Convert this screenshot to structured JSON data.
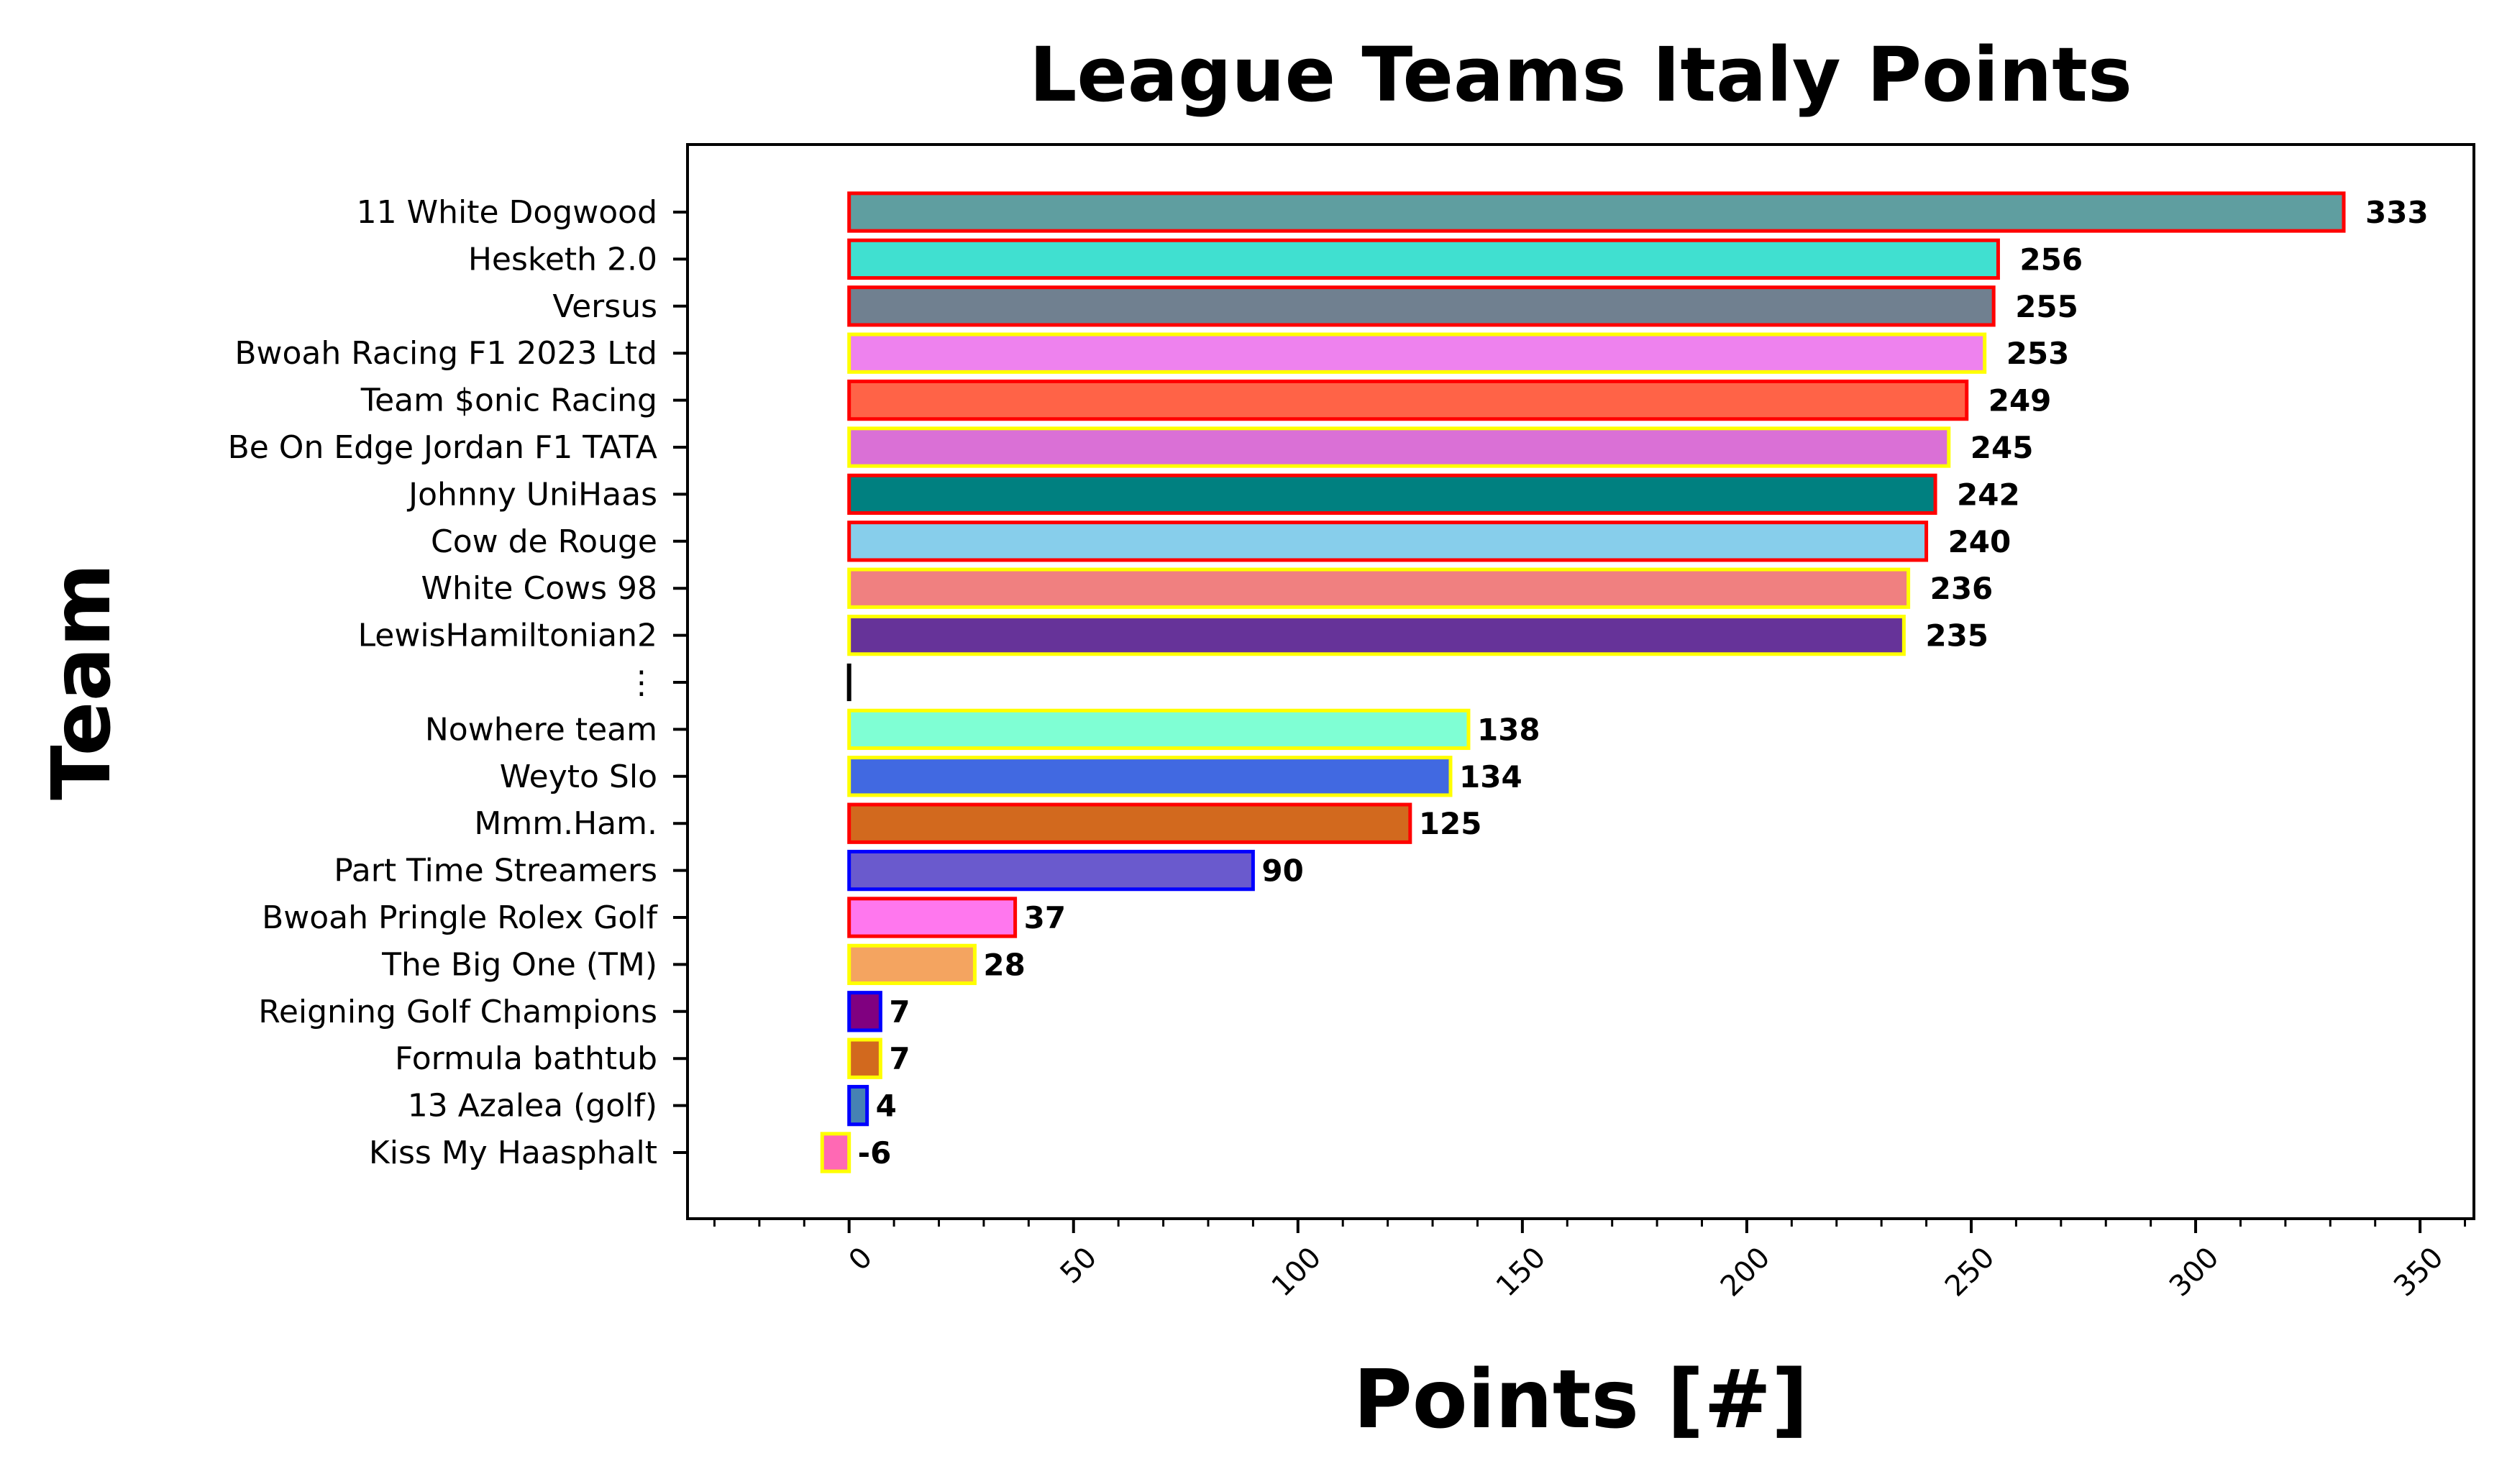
{
  "chart_data": {
    "type": "bar",
    "orientation": "horizontal",
    "title": "League Teams Italy Points",
    "xlabel": "Points [#]",
    "ylabel": "Team",
    "xlim": [
      -36,
      362
    ],
    "xticks": [
      0,
      50,
      100,
      150,
      200,
      250,
      300,
      350
    ],
    "xticks_minor_step": 10,
    "xtick_rotation": 45,
    "grid": false,
    "legend": "none",
    "bars": [
      {
        "label": "11 White Dogwood",
        "value": 333,
        "value_label": "333",
        "fill": "#5f9ea0",
        "edge": "#ff0000"
      },
      {
        "label": "Hesketh 2.0",
        "value": 256,
        "value_label": "256",
        "fill": "#40e0d0",
        "edge": "#ff0000"
      },
      {
        "label": "Versus",
        "value": 255,
        "value_label": "255",
        "fill": "#708090",
        "edge": "#ff0000"
      },
      {
        "label": "Bwoah Racing F1 2023 Ltd",
        "value": 253,
        "value_label": "253",
        "fill": "#ee82ee",
        "edge": "#ffff00"
      },
      {
        "label": "Team $onic Racing",
        "value": 249,
        "value_label": "249",
        "fill": "#ff6347",
        "edge": "#ff0000"
      },
      {
        "label": "Be On Edge Jordan F1 TATA",
        "value": 245,
        "value_label": "245",
        "fill": "#da70d6",
        "edge": "#ffff00"
      },
      {
        "label": "Johnny UniHaas",
        "value": 242,
        "value_label": "242",
        "fill": "#008080",
        "edge": "#ff0000"
      },
      {
        "label": "Cow de Rouge",
        "value": 240,
        "value_label": "240",
        "fill": "#87ceeb",
        "edge": "#ff0000"
      },
      {
        "label": "White Cows 98",
        "value": 236,
        "value_label": "236",
        "fill": "#f08080",
        "edge": "#ffff00"
      },
      {
        "label": "LewisHamiltonian2",
        "value": 235,
        "value_label": "235",
        "fill": "#663399",
        "edge": "#ffff00"
      },
      {
        "label": "⋮",
        "value": 0,
        "value_label": "",
        "fill": "#000000",
        "edge": "#000000",
        "separator": true
      },
      {
        "label": "Nowhere team",
        "value": 138,
        "value_label": "138",
        "fill": "#7fffd4",
        "edge": "#ffff00"
      },
      {
        "label": "Weyto Slo",
        "value": 134,
        "value_label": "134",
        "fill": "#4169e1",
        "edge": "#ffff00"
      },
      {
        "label": "Mmm.Ham.",
        "value": 125,
        "value_label": "125",
        "fill": "#d2691e",
        "edge": "#ff0000"
      },
      {
        "label": "Part Time Streamers",
        "value": 90,
        "value_label": "90",
        "fill": "#6a5acd",
        "edge": "#0000ff"
      },
      {
        "label": "Bwoah Pringle Rolex Golf",
        "value": 37,
        "value_label": "37",
        "fill": "#ff77ee",
        "edge": "#ff0000"
      },
      {
        "label": "The Big One (TM)",
        "value": 28,
        "value_label": "28",
        "fill": "#f4a460",
        "edge": "#ffff00"
      },
      {
        "label": "Reigning Golf Champions",
        "value": 7,
        "value_label": "7",
        "fill": "#800080",
        "edge": "#0000ff"
      },
      {
        "label": "Formula bathtub",
        "value": 7,
        "value_label": "7",
        "fill": "#d2691e",
        "edge": "#ffff00"
      },
      {
        "label": "13 Azalea (golf)",
        "value": 4,
        "value_label": "4",
        "fill": "#4682b4",
        "edge": "#0000ff"
      },
      {
        "label": "Kiss My Haasphalt",
        "value": -6,
        "value_label": "-6",
        "fill": "#ff69b4",
        "edge": "#ffff00"
      }
    ]
  }
}
